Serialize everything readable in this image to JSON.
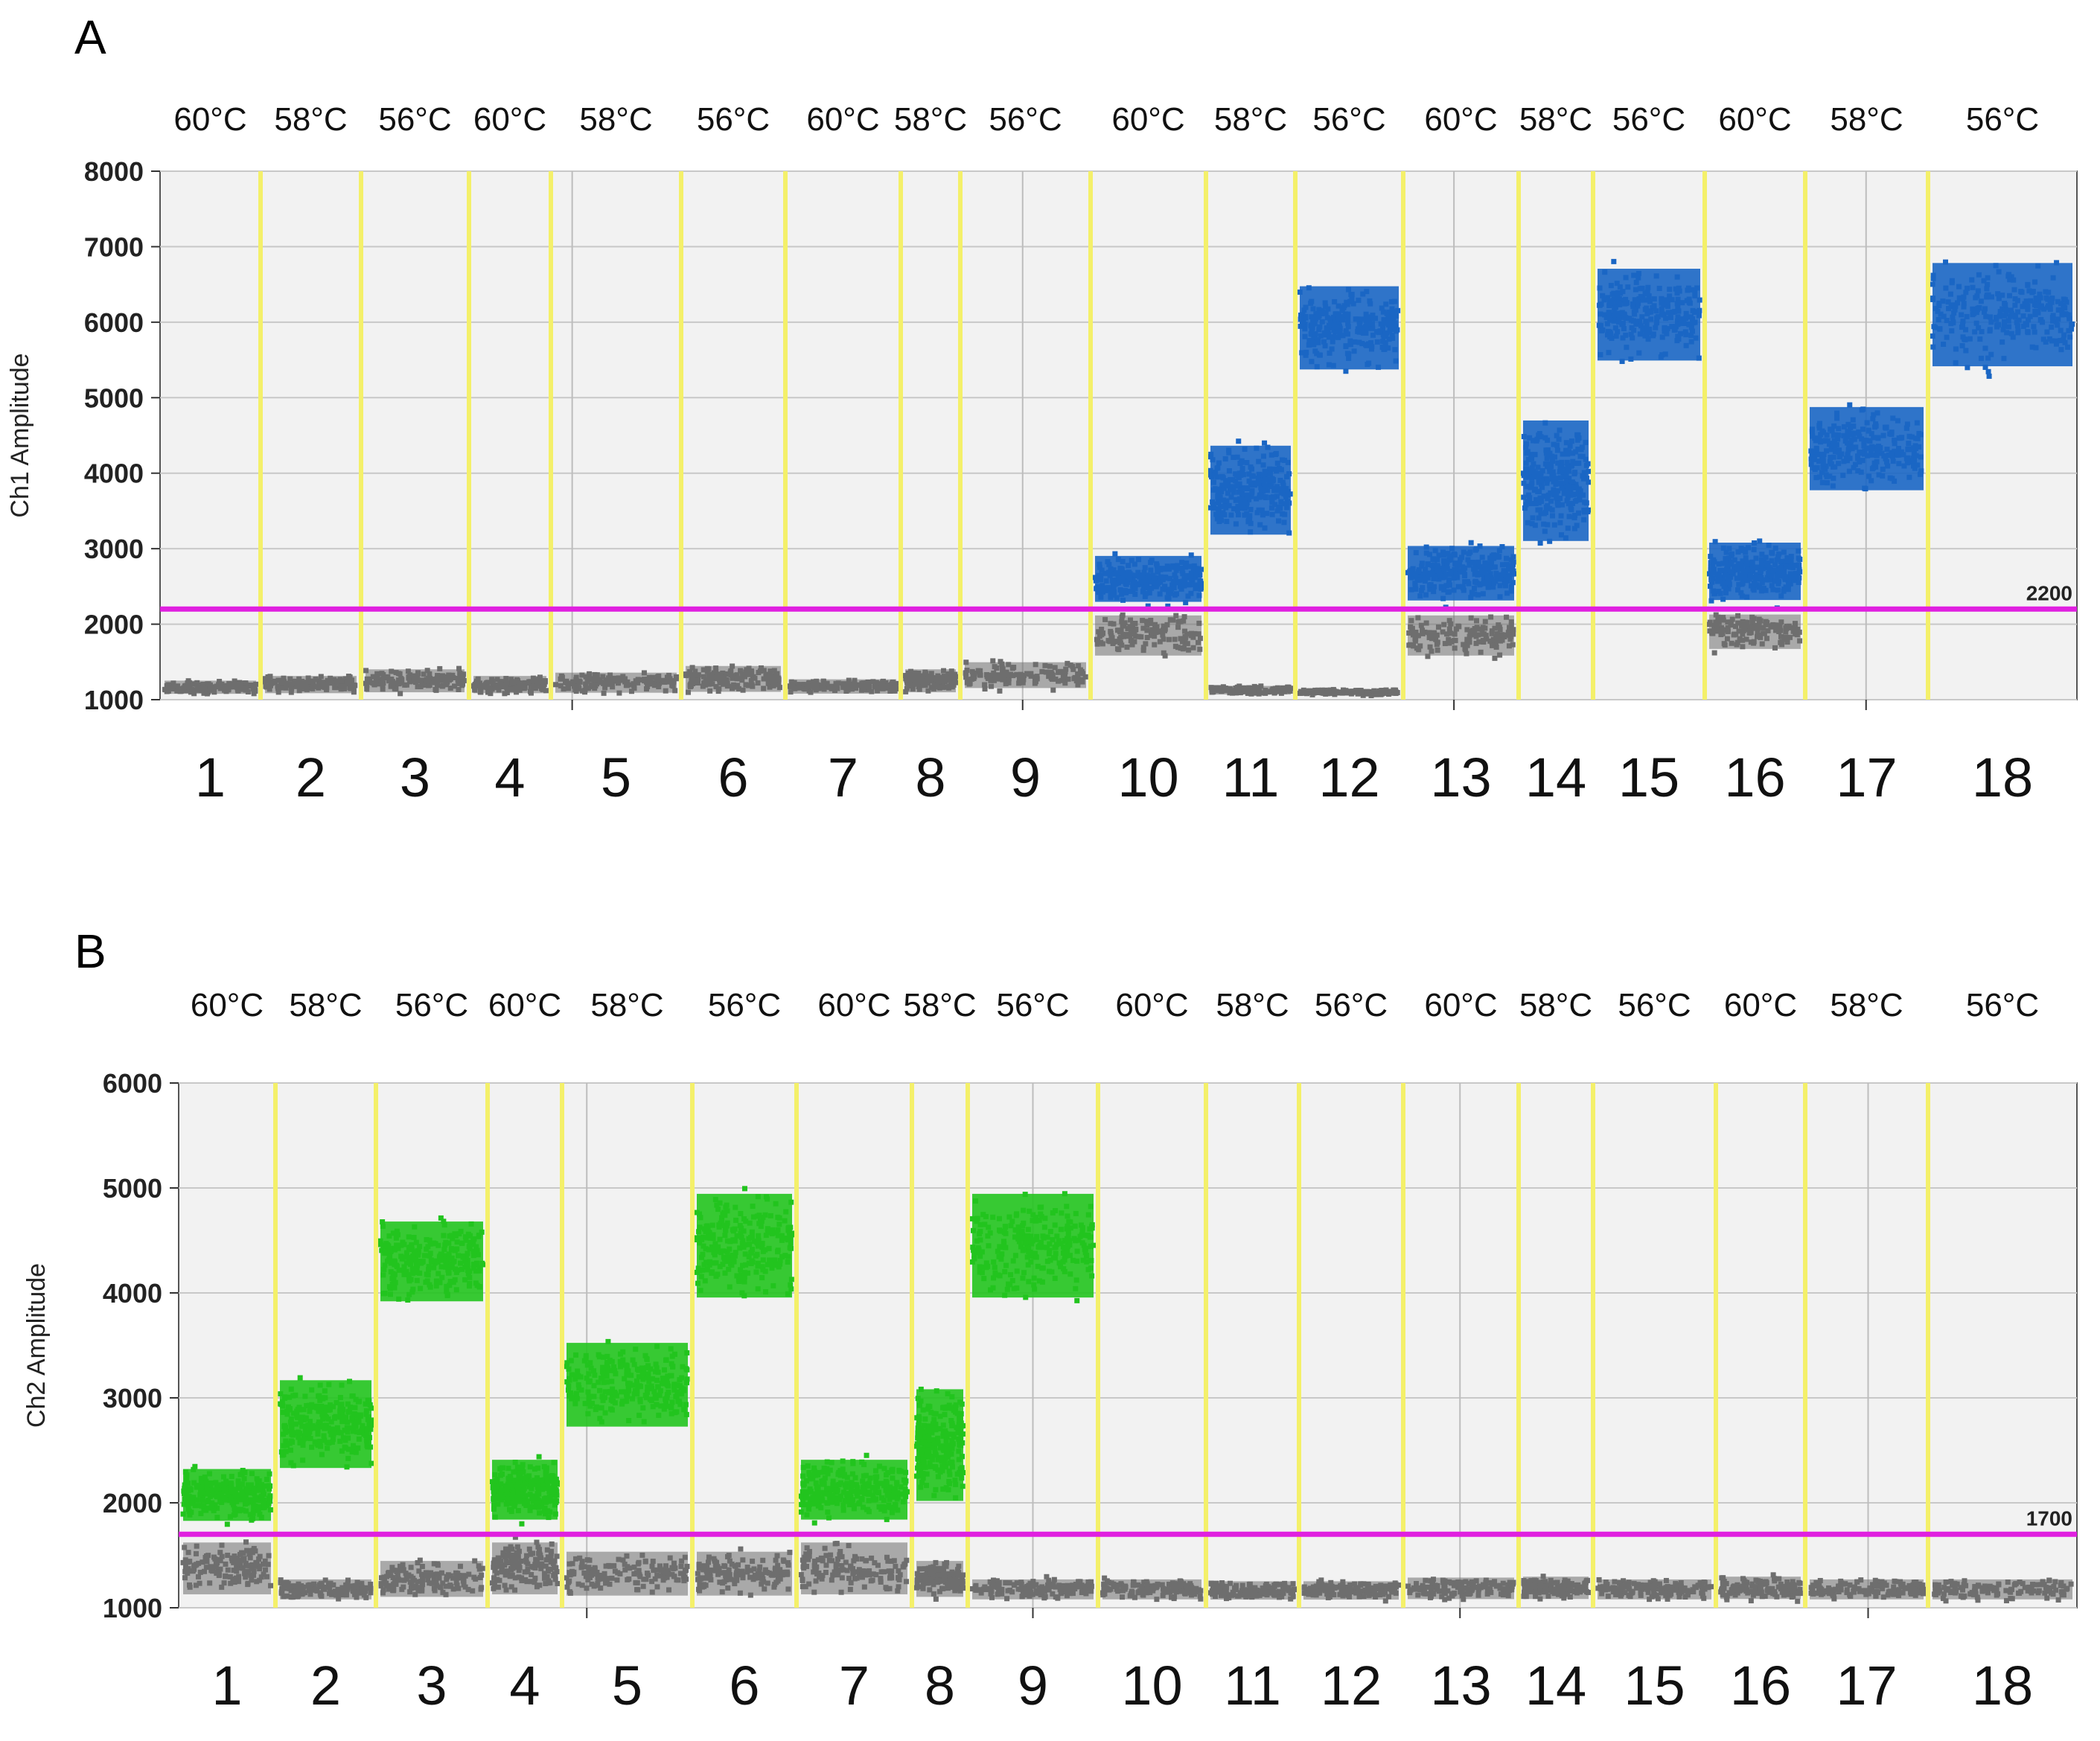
{
  "chart_data": [
    {
      "panel_label": "A",
      "type": "scatter",
      "ylabel": "Ch1 Amplitude",
      "ylim": [
        1000,
        8000
      ],
      "yticks": [
        1000,
        2000,
        3000,
        4000,
        5000,
        6000,
        7000,
        8000
      ],
      "threshold": {
        "value": 2200,
        "label": "2200",
        "color": "#e020e0"
      },
      "positive_color": "#1a66c4",
      "negative_color": "#6e6e6e",
      "temperatures": [
        "60°C",
        "58°C",
        "56°C",
        "60°C",
        "58°C",
        "56°C",
        "60°C",
        "58°C",
        "56°C",
        "60°C",
        "58°C",
        "56°C",
        "60°C",
        "58°C",
        "56°C",
        "60°C",
        "58°C",
        "56°C"
      ],
      "wells": [
        "1",
        "2",
        "3",
        "4",
        "5",
        "6",
        "7",
        "8",
        "9",
        "10",
        "11",
        "12",
        "13",
        "14",
        "15",
        "16",
        "17",
        "18"
      ],
      "series": [
        {
          "well": "1",
          "temperature": "60°C",
          "positive_band": null,
          "negative_band": [
            1050,
            1280
          ]
        },
        {
          "well": "2",
          "temperature": "58°C",
          "positive_band": null,
          "negative_band": [
            1050,
            1350
          ]
        },
        {
          "well": "3",
          "temperature": "56°C",
          "positive_band": null,
          "negative_band": [
            1050,
            1450
          ]
        },
        {
          "well": "4",
          "temperature": "60°C",
          "positive_band": null,
          "negative_band": [
            1050,
            1350
          ]
        },
        {
          "well": "5",
          "temperature": "58°C",
          "positive_band": null,
          "negative_band": [
            1050,
            1400
          ]
        },
        {
          "well": "6",
          "temperature": "56°C",
          "positive_band": null,
          "negative_band": [
            1050,
            1500
          ]
        },
        {
          "well": "7",
          "temperature": "60°C",
          "positive_band": null,
          "negative_band": [
            1050,
            1300
          ]
        },
        {
          "well": "8",
          "temperature": "58°C",
          "positive_band": null,
          "negative_band": [
            1050,
            1450
          ]
        },
        {
          "well": "9",
          "temperature": "56°C",
          "positive_band": null,
          "negative_band": [
            1100,
            1550
          ]
        },
        {
          "well": "10",
          "temperature": "60°C",
          "positive_band": [
            2200,
            3000
          ],
          "negative_band": [
            1500,
            2200
          ]
        },
        {
          "well": "11",
          "temperature": "58°C",
          "positive_band": [
            3000,
            4550
          ],
          "negative_band": [
            1050,
            1200
          ]
        },
        {
          "well": "12",
          "temperature": "56°C",
          "positive_band": [
            5200,
            6650
          ],
          "negative_band": [
            1050,
            1150
          ]
        },
        {
          "well": "13",
          "temperature": "60°C",
          "positive_band": [
            2200,
            3150
          ],
          "negative_band": [
            1500,
            2200
          ]
        },
        {
          "well": "14",
          "temperature": "58°C",
          "positive_band": [
            2850,
            4950
          ],
          "negative_band": null
        },
        {
          "well": "15",
          "temperature": "56°C",
          "positive_band": [
            5300,
            6900
          ],
          "negative_band": null
        },
        {
          "well": "16",
          "temperature": "60°C",
          "positive_band": [
            2200,
            3200
          ],
          "negative_band": [
            1600,
            2200
          ]
        },
        {
          "well": "17",
          "temperature": "58°C",
          "positive_band": [
            3600,
            5050
          ],
          "negative_band": null
        },
        {
          "well": "18",
          "temperature": "56°C",
          "positive_band": [
            5200,
            7000
          ],
          "negative_band": null
        }
      ]
    },
    {
      "panel_label": "B",
      "type": "scatter",
      "ylabel": "Ch2 Amplitude",
      "ylim": [
        1000,
        6000
      ],
      "yticks": [
        1000,
        2000,
        3000,
        4000,
        5000,
        6000
      ],
      "threshold": {
        "value": 1700,
        "label": "1700",
        "color": "#e020e0"
      },
      "positive_color": "#22c41e",
      "negative_color": "#6e6e6e",
      "temperatures": [
        "60°C",
        "58°C",
        "56°C",
        "60°C",
        "58°C",
        "56°C",
        "60°C",
        "58°C",
        "56°C",
        "60°C",
        "58°C",
        "56°C",
        "60°C",
        "58°C",
        "56°C",
        "60°C",
        "58°C",
        "56°C"
      ],
      "wells": [
        "1",
        "2",
        "3",
        "4",
        "5",
        "6",
        "7",
        "8",
        "9",
        "10",
        "11",
        "12",
        "13",
        "14",
        "15",
        "16",
        "17",
        "18"
      ],
      "series": [
        {
          "well": "1",
          "temperature": "60°C",
          "positive_band": [
            1750,
            2400
          ],
          "negative_band": [
            1050,
            1700
          ]
        },
        {
          "well": "2",
          "temperature": "58°C",
          "positive_band": [
            2200,
            3300
          ],
          "negative_band": [
            1050,
            1300
          ]
        },
        {
          "well": "3",
          "temperature": "56°C",
          "positive_band": [
            3800,
            4800
          ],
          "negative_band": [
            1050,
            1500
          ]
        },
        {
          "well": "4",
          "temperature": "60°C",
          "positive_band": [
            1750,
            2500
          ],
          "negative_band": [
            1050,
            1700
          ]
        },
        {
          "well": "5",
          "temperature": "58°C",
          "positive_band": [
            2600,
            3650
          ],
          "negative_band": [
            1050,
            1600
          ]
        },
        {
          "well": "6",
          "temperature": "56°C",
          "positive_band": [
            3800,
            5100
          ],
          "negative_band": [
            1050,
            1600
          ]
        },
        {
          "well": "7",
          "temperature": "60°C",
          "positive_band": [
            1750,
            2500
          ],
          "negative_band": [
            1050,
            1700
          ]
        },
        {
          "well": "8",
          "temperature": "58°C",
          "positive_band": [
            1850,
            3250
          ],
          "negative_band": [
            1050,
            1500
          ]
        },
        {
          "well": "9",
          "temperature": "56°C",
          "positive_band": [
            3800,
            5100
          ],
          "negative_band": [
            1050,
            1300
          ]
        },
        {
          "well": "10",
          "temperature": "60°C",
          "positive_band": null,
          "negative_band": [
            1050,
            1300
          ]
        },
        {
          "well": "11",
          "temperature": "58°C",
          "positive_band": null,
          "negative_band": [
            1050,
            1280
          ]
        },
        {
          "well": "12",
          "temperature": "56°C",
          "positive_band": null,
          "negative_band": [
            1050,
            1280
          ]
        },
        {
          "well": "13",
          "temperature": "60°C",
          "positive_band": null,
          "negative_band": [
            1050,
            1320
          ]
        },
        {
          "well": "14",
          "temperature": "58°C",
          "positive_band": null,
          "negative_band": [
            1050,
            1330
          ]
        },
        {
          "well": "15",
          "temperature": "56°C",
          "positive_band": null,
          "negative_band": [
            1050,
            1300
          ]
        },
        {
          "well": "16",
          "temperature": "60°C",
          "positive_band": null,
          "negative_band": [
            1050,
            1330
          ]
        },
        {
          "well": "17",
          "temperature": "58°C",
          "positive_band": null,
          "negative_band": [
            1050,
            1300
          ]
        },
        {
          "well": "18",
          "temperature": "56°C",
          "positive_band": null,
          "negative_band": [
            1050,
            1300
          ]
        }
      ]
    }
  ]
}
